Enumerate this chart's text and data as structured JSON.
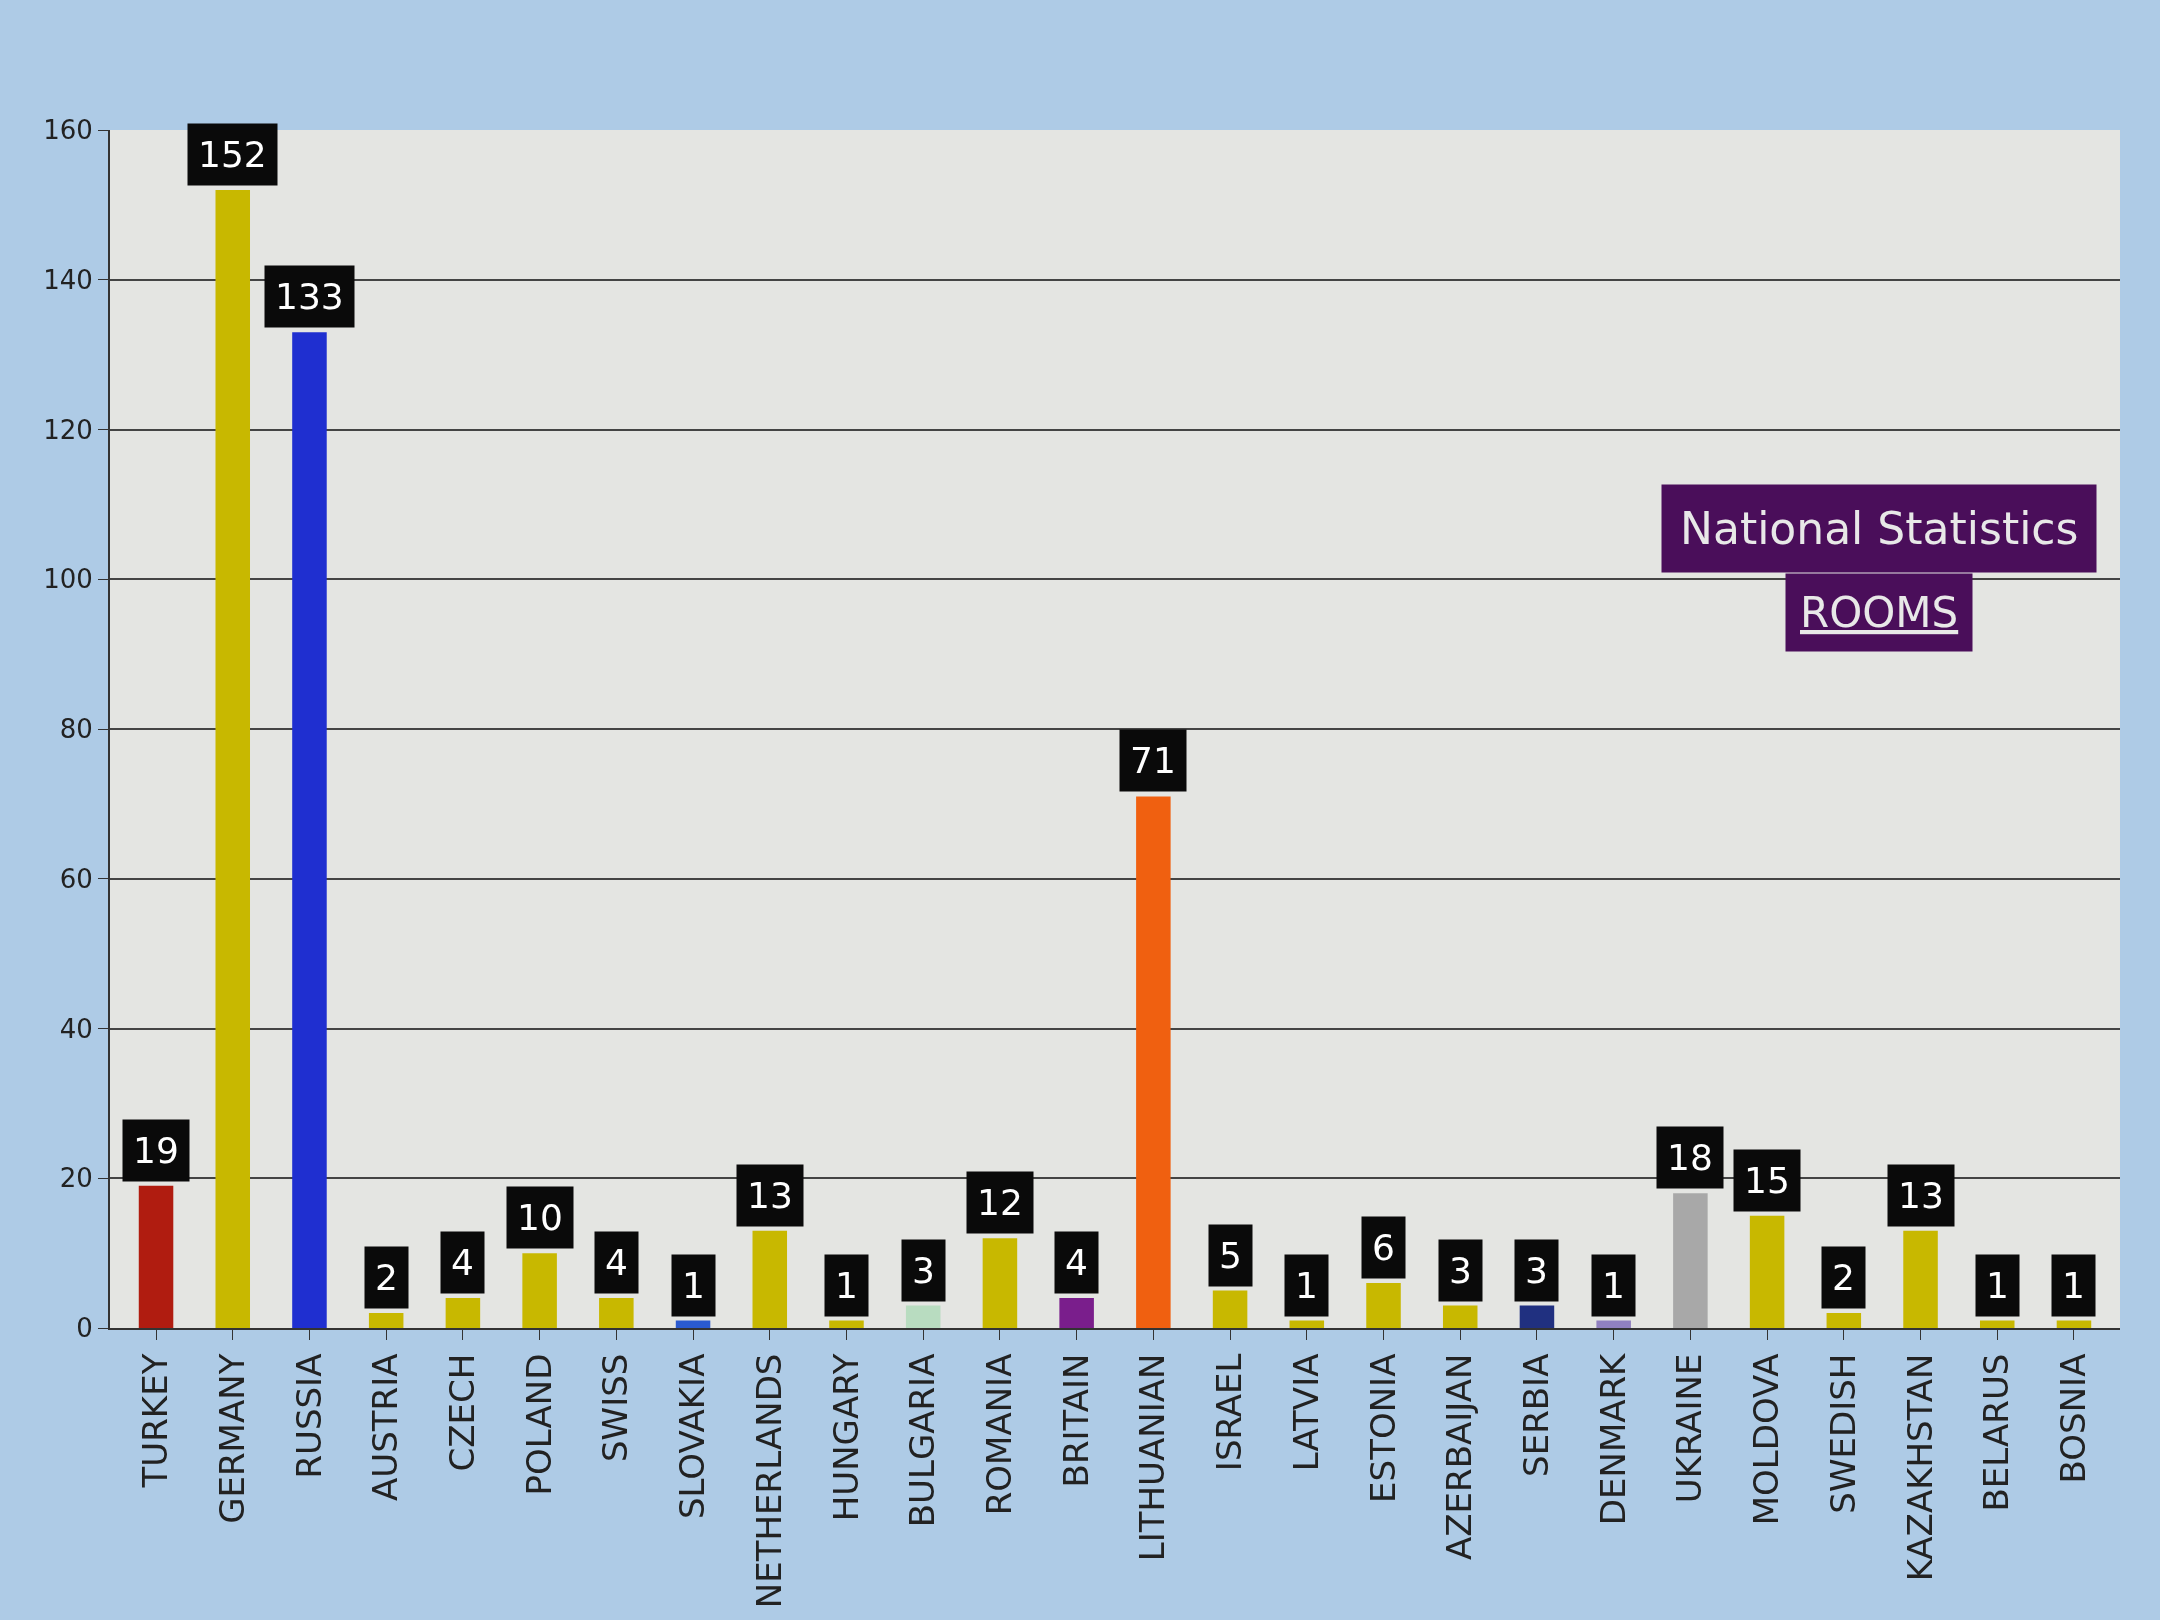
{
  "chart_data": {
    "type": "bar",
    "title": "National Statistics",
    "subtitle": "ROOMS",
    "categories": [
      "TURKEY",
      "GERMANY",
      "RUSSIA",
      "AUSTRIA",
      "CZECH",
      "POLAND",
      "SWISS",
      "SLOVAKIA",
      "NETHERLANDS",
      "HUNGARY",
      "BULGARIA",
      "ROMANIA",
      "BRITAIN",
      "LITHUANIAN",
      "ISRAEL",
      "LATVIA",
      "ESTONIA",
      "AZERBAIJAN",
      "SERBIA",
      "DENMARK",
      "UKRAINE",
      "MOLDOVA",
      "SWEDISH",
      "KAZAKHSTAN",
      "BELARUS",
      "BOSNIA"
    ],
    "values": [
      19,
      152,
      133,
      2,
      4,
      10,
      4,
      1,
      13,
      1,
      3,
      12,
      4,
      71,
      5,
      1,
      6,
      3,
      3,
      1,
      18,
      15,
      2,
      13,
      1,
      1
    ],
    "colors": [
      "#b01c10",
      "#c8b800",
      "#1f2fd0",
      "#c8b800",
      "#c8b800",
      "#c8b800",
      "#c8b800",
      "#2a5ad0",
      "#c8b800",
      "#c8b800",
      "#b8dcc0",
      "#c8b800",
      "#7a1e8c",
      "#f06010",
      "#c8b800",
      "#c8b800",
      "#c8b800",
      "#c8b800",
      "#203080",
      "#9080c0",
      "#a8a8a8",
      "#c8b800",
      "#c8b800",
      "#c8b800",
      "#c8b800",
      "#c8b800"
    ],
    "ylim": [
      0,
      160
    ],
    "yticks": [
      0,
      20,
      40,
      60,
      80,
      100,
      120,
      140,
      160
    ],
    "grid": "y",
    "data_labels": true
  }
}
